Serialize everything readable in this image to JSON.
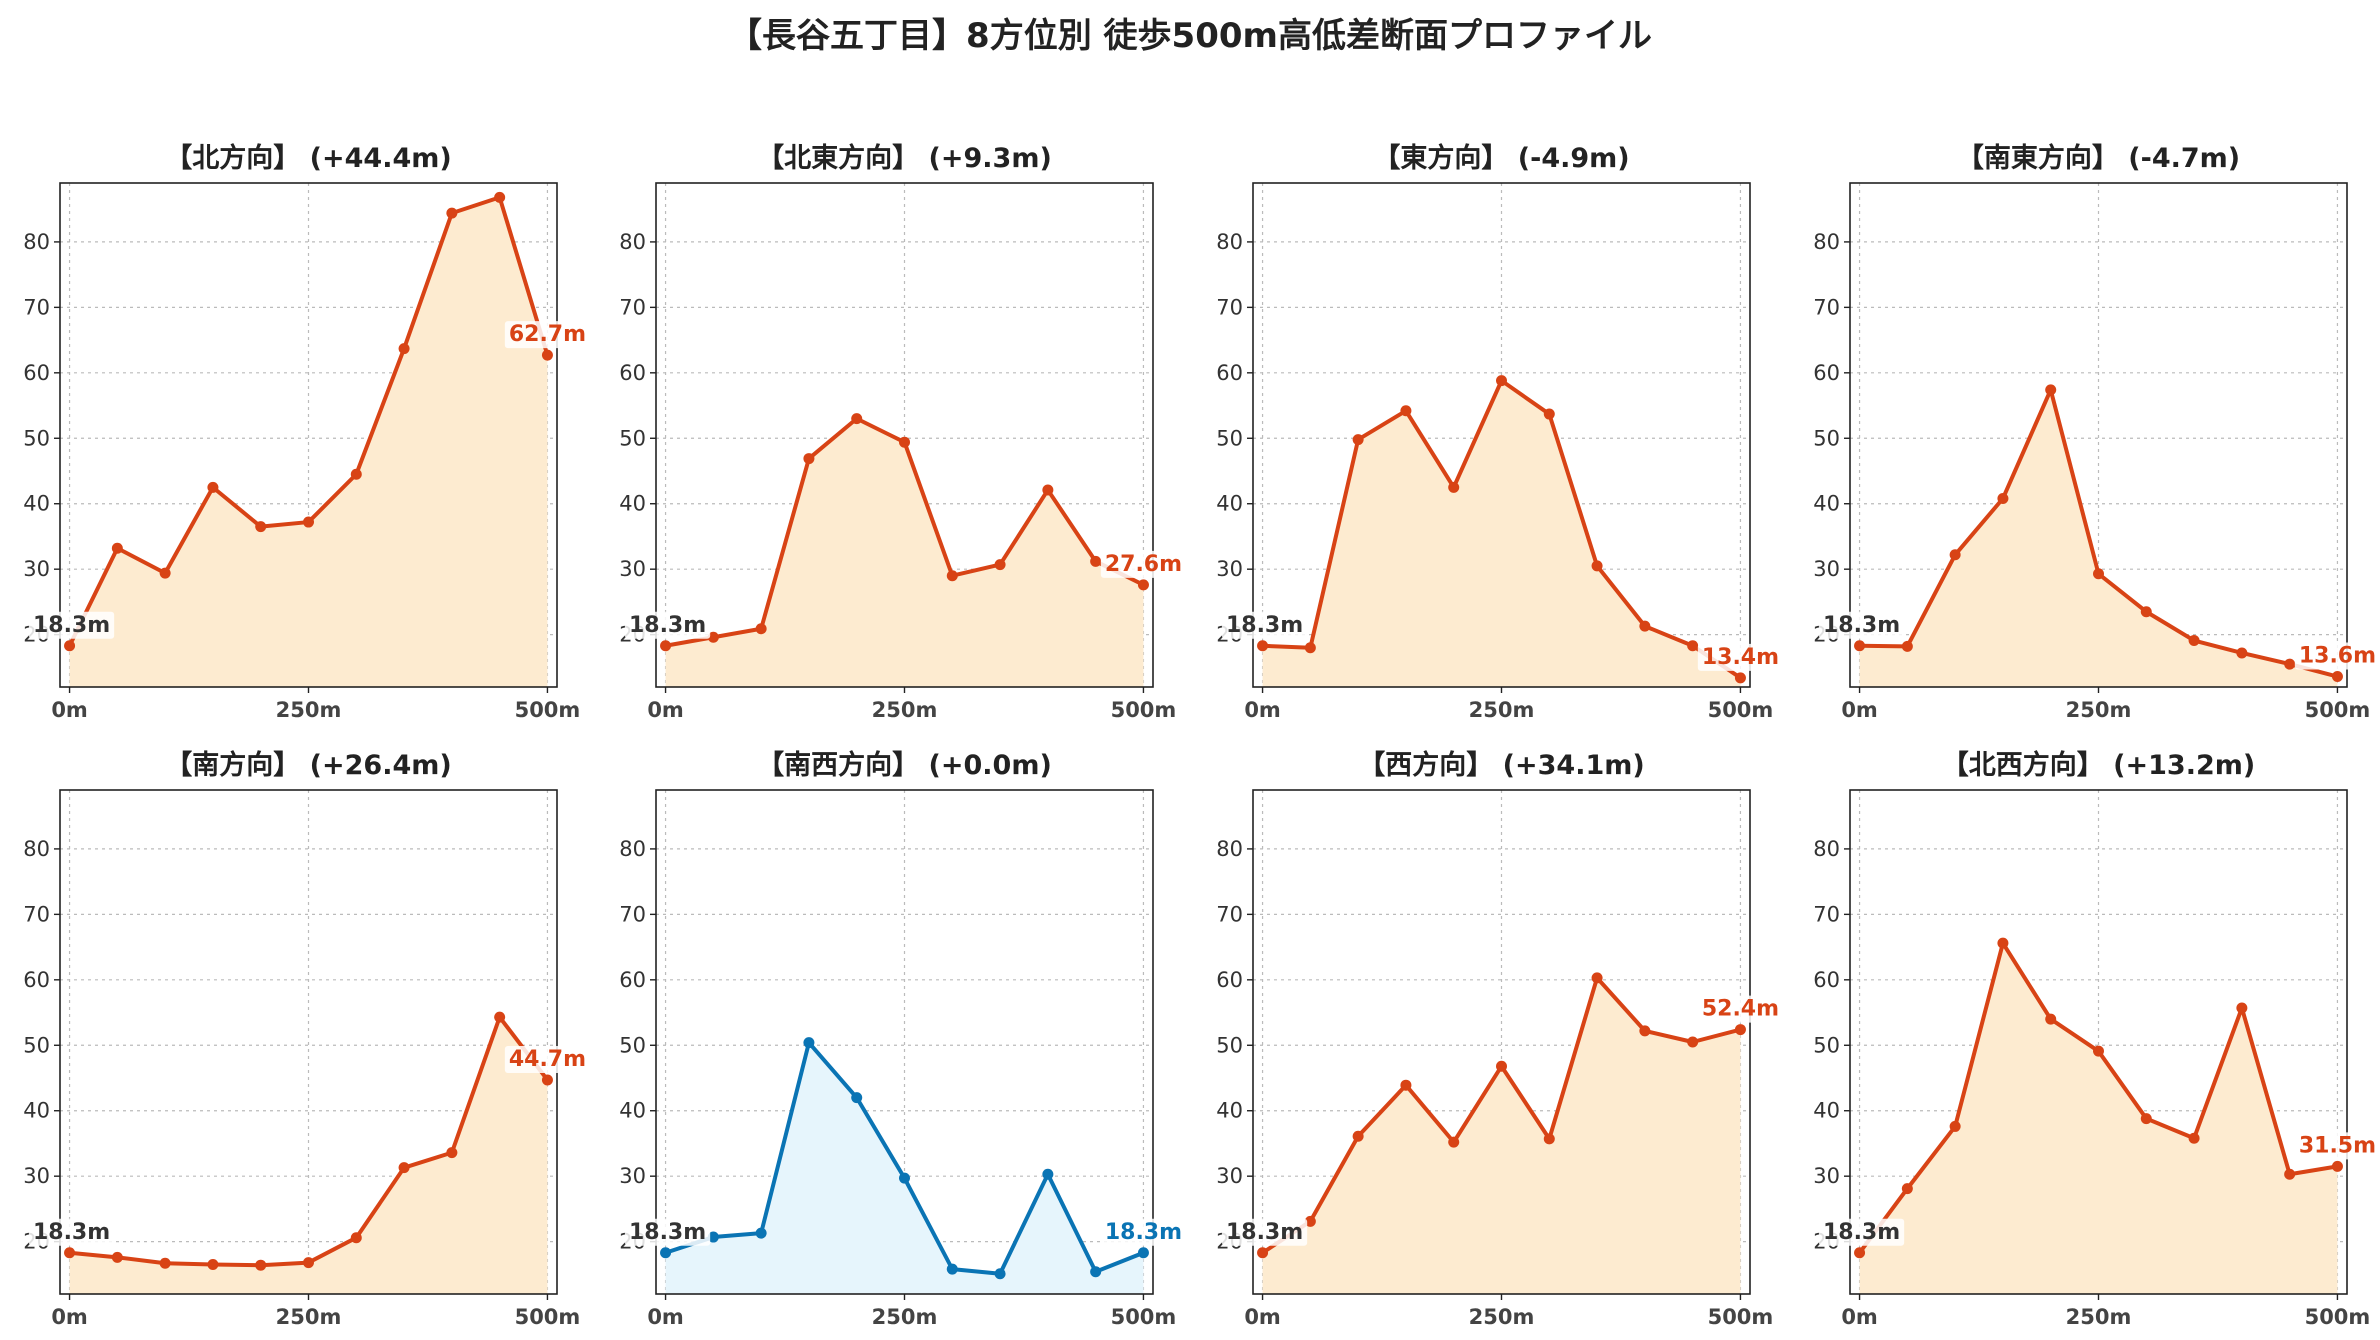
{
  "figure": {
    "title": "【長谷五丁目】8方位別 徒歩500m高低差断面プロファイル"
  },
  "colors": {
    "up_line": "#d84315",
    "up_fill": "#fdebd0",
    "flat_line": "#0a74b4",
    "flat_fill": "#e6f5fc",
    "start_label": "#333333",
    "grid": "#bbbbbb"
  },
  "chart_data": [
    {
      "type": "line",
      "title": "【北方向】 (+44.4m)",
      "x": [
        0,
        50,
        100,
        150,
        200,
        250,
        300,
        350,
        400,
        450,
        500
      ],
      "values": [
        18.3,
        33.2,
        29.4,
        42.5,
        36.5,
        37.2,
        44.5,
        63.7,
        84.4,
        86.8,
        62.7
      ],
      "start_label": "18.3m",
      "end_label": "62.7m",
      "trend": "up",
      "x_ticks": [
        "0m",
        "250m",
        "500m"
      ],
      "y_ticks": [
        20,
        30,
        40,
        50,
        60,
        70,
        80
      ],
      "ylim": [
        12,
        89
      ],
      "xlim": [
        -10,
        510
      ],
      "grid": true
    },
    {
      "type": "line",
      "title": "【北東方向】 (+9.3m)",
      "x": [
        0,
        50,
        100,
        150,
        200,
        250,
        300,
        350,
        400,
        450,
        500
      ],
      "values": [
        18.3,
        19.6,
        20.9,
        46.9,
        53.0,
        49.4,
        29.0,
        30.7,
        42.1,
        31.2,
        27.6
      ],
      "start_label": "18.3m",
      "end_label": "27.6m",
      "trend": "up",
      "x_ticks": [
        "0m",
        "250m",
        "500m"
      ],
      "y_ticks": [
        20,
        30,
        40,
        50,
        60,
        70,
        80
      ],
      "ylim": [
        12,
        89
      ],
      "xlim": [
        -10,
        510
      ],
      "grid": true
    },
    {
      "type": "line",
      "title": "【東方向】 (-4.9m)",
      "x": [
        0,
        50,
        100,
        150,
        200,
        250,
        300,
        350,
        400,
        450,
        500
      ],
      "values": [
        18.3,
        18.0,
        49.8,
        54.2,
        42.5,
        58.8,
        53.7,
        30.5,
        21.3,
        18.3,
        13.4
      ],
      "start_label": "18.3m",
      "end_label": "13.4m",
      "trend": "up",
      "x_ticks": [
        "0m",
        "250m",
        "500m"
      ],
      "y_ticks": [
        20,
        30,
        40,
        50,
        60,
        70,
        80
      ],
      "ylim": [
        12,
        89
      ],
      "xlim": [
        -10,
        510
      ],
      "grid": true
    },
    {
      "type": "line",
      "title": "【南東方向】 (-4.7m)",
      "x": [
        0,
        50,
        100,
        150,
        200,
        250,
        300,
        350,
        400,
        450,
        500
      ],
      "values": [
        18.3,
        18.2,
        32.2,
        40.8,
        57.4,
        29.3,
        23.5,
        19.1,
        17.2,
        15.5,
        13.6
      ],
      "start_label": "18.3m",
      "end_label": "13.6m",
      "trend": "up",
      "x_ticks": [
        "0m",
        "250m",
        "500m"
      ],
      "y_ticks": [
        20,
        30,
        40,
        50,
        60,
        70,
        80
      ],
      "ylim": [
        12,
        89
      ],
      "xlim": [
        -10,
        510
      ],
      "grid": true
    },
    {
      "type": "line",
      "title": "【南方向】 (+26.4m)",
      "x": [
        0,
        50,
        100,
        150,
        200,
        250,
        300,
        350,
        400,
        450,
        500
      ],
      "values": [
        18.3,
        17.6,
        16.7,
        16.5,
        16.4,
        16.8,
        20.6,
        31.3,
        33.6,
        54.3,
        44.7
      ],
      "start_label": "18.3m",
      "end_label": "44.7m",
      "trend": "up",
      "x_ticks": [
        "0m",
        "250m",
        "500m"
      ],
      "y_ticks": [
        20,
        30,
        40,
        50,
        60,
        70,
        80
      ],
      "ylim": [
        12,
        89
      ],
      "xlim": [
        -10,
        510
      ],
      "grid": true
    },
    {
      "type": "line",
      "title": "【南西方向】 (+0.0m)",
      "x": [
        0,
        50,
        100,
        150,
        200,
        250,
        300,
        350,
        400,
        450,
        500
      ],
      "values": [
        18.3,
        20.7,
        21.3,
        50.4,
        42.0,
        29.7,
        15.8,
        15.1,
        30.3,
        15.4,
        18.3
      ],
      "start_label": "18.3m",
      "end_label": "18.3m",
      "trend": "flat",
      "x_ticks": [
        "0m",
        "250m",
        "500m"
      ],
      "y_ticks": [
        20,
        30,
        40,
        50,
        60,
        70,
        80
      ],
      "ylim": [
        12,
        89
      ],
      "xlim": [
        -10,
        510
      ],
      "grid": true
    },
    {
      "type": "line",
      "title": "【西方向】 (+34.1m)",
      "x": [
        0,
        50,
        100,
        150,
        200,
        250,
        300,
        350,
        400,
        450,
        500
      ],
      "values": [
        18.3,
        23.1,
        36.1,
        43.9,
        35.2,
        46.8,
        35.7,
        60.3,
        52.2,
        50.5,
        52.4
      ],
      "start_label": "18.3m",
      "end_label": "52.4m",
      "trend": "up",
      "x_ticks": [
        "0m",
        "250m",
        "500m"
      ],
      "y_ticks": [
        20,
        30,
        40,
        50,
        60,
        70,
        80
      ],
      "ylim": [
        12,
        89
      ],
      "xlim": [
        -10,
        510
      ],
      "grid": true
    },
    {
      "type": "line",
      "title": "【北西方向】 (+13.2m)",
      "x": [
        0,
        50,
        100,
        150,
        200,
        250,
        300,
        350,
        400,
        450,
        500
      ],
      "values": [
        18.3,
        28.1,
        37.6,
        65.6,
        54.0,
        49.1,
        38.8,
        35.8,
        55.7,
        30.3,
        31.5
      ],
      "start_label": "18.3m",
      "end_label": "31.5m",
      "trend": "up",
      "x_ticks": [
        "0m",
        "250m",
        "500m"
      ],
      "y_ticks": [
        20,
        30,
        40,
        50,
        60,
        70,
        80
      ],
      "ylim": [
        12,
        89
      ],
      "xlim": [
        -10,
        510
      ],
      "grid": true
    }
  ]
}
